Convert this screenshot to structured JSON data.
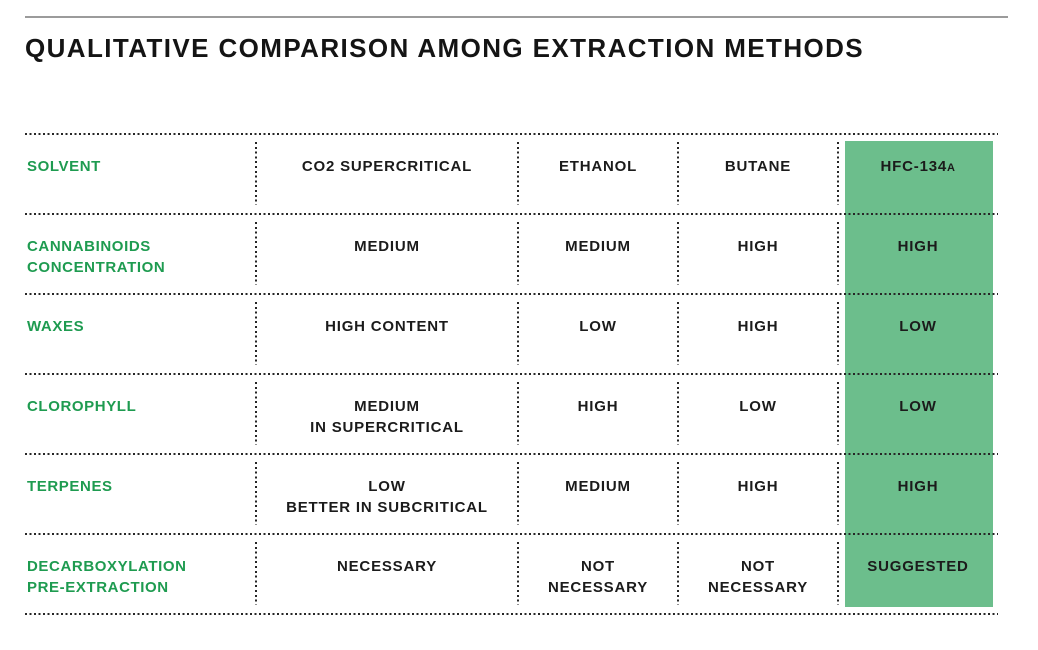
{
  "title": "QUALITATIVE COMPARISON AMONG EXTRACTION METHODS",
  "colors": {
    "accent_green": "#1e9b50",
    "highlight_green": "#6cbe8c",
    "rule_gray": "#9b9b9b",
    "dot_color": "#262626",
    "text_black": "#1b1b1b"
  },
  "table": {
    "header": {
      "label": "SOLVENT",
      "columns": [
        "CO2 SUPERCRITICAL",
        "ETHANOL",
        "BUTANE"
      ],
      "highlight": {
        "base": "HFC-134",
        "suffix": "A"
      }
    },
    "rows": [
      {
        "label": "CANNABINOIDS\nCONCENTRATION",
        "values": [
          "MEDIUM",
          "MEDIUM",
          "HIGH"
        ],
        "highlight": "HIGH"
      },
      {
        "label": "WAXES",
        "values": [
          "HIGH CONTENT",
          "LOW",
          "HIGH"
        ],
        "highlight": "LOW"
      },
      {
        "label": "CLOROPHYLL",
        "values": [
          "MEDIUM\nIN SUPERCRITICAL",
          "HIGH",
          "LOW"
        ],
        "highlight": "LOW"
      },
      {
        "label": "TERPENES",
        "values": [
          "LOW\nBETTER IN SUBCRITICAL",
          "MEDIUM",
          "HIGH"
        ],
        "highlight": "HIGH"
      },
      {
        "label": "DECARBOXYLATION\nPRE-EXTRACTION",
        "values": [
          "NECESSARY",
          "NOT\nNECESSARY",
          "NOT\nNECESSARY"
        ],
        "highlight": "SUGGESTED"
      }
    ]
  },
  "chart_data": {
    "type": "table",
    "title": "QUALITATIVE COMPARISON AMONG EXTRACTION METHODS",
    "columns": [
      "SOLVENT",
      "CO2 SUPERCRITICAL",
      "ETHANOL",
      "BUTANE",
      "HFC-134A"
    ],
    "rows": [
      [
        "CANNABINOIDS CONCENTRATION",
        "MEDIUM",
        "MEDIUM",
        "HIGH",
        "HIGH"
      ],
      [
        "WAXES",
        "HIGH CONTENT",
        "LOW",
        "HIGH",
        "LOW"
      ],
      [
        "CLOROPHYLL",
        "MEDIUM IN SUPERCRITICAL",
        "HIGH",
        "LOW",
        "LOW"
      ],
      [
        "TERPENES",
        "LOW BETTER IN SUBCRITICAL",
        "MEDIUM",
        "HIGH",
        "HIGH"
      ],
      [
        "DECARBOXYLATION PRE-EXTRACTION",
        "NECESSARY",
        "NOT NECESSARY",
        "NOT NECESSARY",
        "SUGGESTED"
      ]
    ],
    "highlight_column": "HFC-134A",
    "grid": "dotted",
    "legend_position": "none"
  }
}
